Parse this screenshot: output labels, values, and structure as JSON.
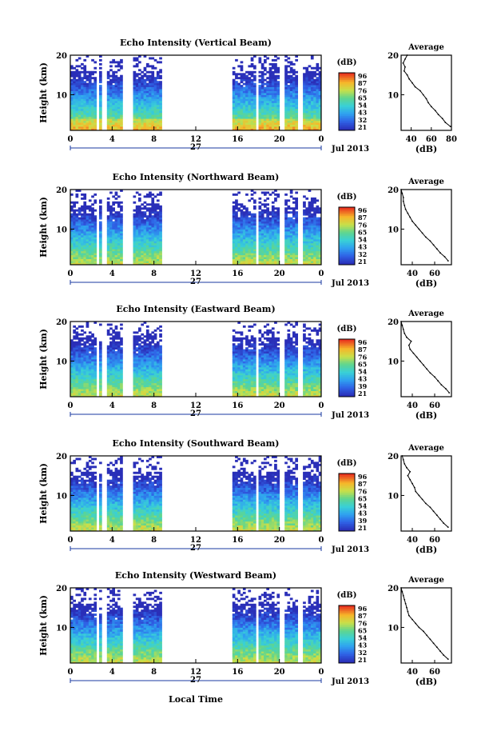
{
  "figure": {
    "xlabel": "Local Time",
    "date_label": "Jul 2013",
    "day_label": "27",
    "colorbar_unit": "(dB)"
  },
  "chart_data": [
    {
      "type": "heatmap",
      "title": "Echo Intensity (Vertical Beam)",
      "xlabel": "",
      "ylabel": "Height (km)",
      "xlim": [
        0,
        24
      ],
      "ylim": [
        1,
        20
      ],
      "xticks": [
        "0",
        "4",
        "8",
        "12",
        "16",
        "20",
        "0"
      ],
      "yticks": [
        "20",
        "10"
      ],
      "colorbar_ticks": [
        "96",
        "87",
        "76",
        "65",
        "54",
        "43",
        "32",
        "21"
      ],
      "data_gaps_hours": [
        [
          2.4,
          2.7
        ],
        [
          3.0,
          3.5
        ],
        [
          5.0,
          6.1
        ],
        [
          8.7,
          15.5
        ],
        [
          17.7,
          18.0
        ],
        [
          20.0,
          20.5
        ],
        [
          21.8,
          22.3
        ]
      ],
      "noise_top_hours": [
        [
          0,
          8.7
        ],
        [
          15.5,
          24
        ]
      ],
      "profile": {
        "title": "Average",
        "xlabel": "(dB)",
        "xticks": [
          "40",
          "60",
          "80"
        ],
        "xlim": [
          30,
          80
        ],
        "heights": [
          2,
          3,
          4,
          5,
          6,
          7,
          8,
          9,
          10,
          11,
          12,
          13,
          14,
          15,
          16,
          17,
          18,
          19,
          20
        ],
        "values": [
          79,
          74,
          71,
          67,
          64,
          60,
          57,
          55,
          52,
          49,
          44,
          41,
          38,
          36,
          33,
          34,
          32,
          34,
          36
        ]
      }
    },
    {
      "type": "heatmap",
      "title": "Echo Intensity (Northward Beam)",
      "xlabel": "",
      "ylabel": "Height (km)",
      "xlim": [
        0,
        24
      ],
      "ylim": [
        1,
        20
      ],
      "xticks": [
        "0",
        "4",
        "8",
        "12",
        "16",
        "20",
        "0"
      ],
      "yticks": [
        "20",
        "10"
      ],
      "colorbar_ticks": [
        "96",
        "87",
        "76",
        "65",
        "54",
        "43",
        "32",
        "21"
      ],
      "data_gaps_hours": [
        [
          2.4,
          2.7
        ],
        [
          3.0,
          3.5
        ],
        [
          5.0,
          6.1
        ],
        [
          8.7,
          15.5
        ],
        [
          17.7,
          18.0
        ],
        [
          20.0,
          20.5
        ],
        [
          21.8,
          22.3
        ]
      ],
      "profile": {
        "title": "Average",
        "xlabel": "(dB)",
        "xticks": [
          "40",
          "60"
        ],
        "xlim": [
          30,
          75
        ],
        "heights": [
          2,
          3,
          4,
          5,
          6,
          7,
          8,
          9,
          10,
          11,
          12,
          13,
          14,
          15,
          16,
          17,
          18,
          19,
          20
        ],
        "values": [
          72,
          69,
          65,
          62,
          59,
          56,
          52,
          49,
          46,
          43,
          40,
          38,
          36,
          34,
          33,
          32,
          32,
          31,
          30
        ]
      }
    },
    {
      "type": "heatmap",
      "title": "Echo Intensity (Eastward Beam)",
      "xlabel": "",
      "ylabel": "Height (km)",
      "xlim": [
        0,
        24
      ],
      "ylim": [
        1,
        20
      ],
      "xticks": [
        "0",
        "4",
        "8",
        "12",
        "16",
        "20",
        "0"
      ],
      "yticks": [
        "20",
        "10"
      ],
      "colorbar_ticks": [
        "96",
        "87",
        "76",
        "65",
        "54",
        "43",
        "39",
        "21"
      ],
      "data_gaps_hours": [
        [
          2.4,
          2.7
        ],
        [
          3.0,
          3.5
        ],
        [
          5.0,
          6.1
        ],
        [
          8.7,
          15.5
        ],
        [
          17.7,
          18.0
        ],
        [
          20.0,
          20.5
        ],
        [
          21.8,
          22.3
        ]
      ],
      "profile": {
        "title": "Average",
        "xlabel": "(dB)",
        "xticks": [
          "40",
          "60"
        ],
        "xlim": [
          30,
          75
        ],
        "heights": [
          2,
          3,
          4,
          5,
          6,
          7,
          8,
          9,
          10,
          11,
          12,
          13,
          14,
          15,
          16,
          17,
          18,
          19,
          20
        ],
        "values": [
          73,
          70,
          66,
          63,
          60,
          56,
          53,
          50,
          47,
          44,
          41,
          38,
          37,
          39,
          35,
          33,
          32,
          31,
          30
        ]
      }
    },
    {
      "type": "heatmap",
      "title": "Echo Intensity (Southward Beam)",
      "xlabel": "",
      "ylabel": "Height (km)",
      "xlim": [
        0,
        24
      ],
      "ylim": [
        1,
        20
      ],
      "xticks": [
        "0",
        "4",
        "8",
        "12",
        "16",
        "20",
        "0"
      ],
      "yticks": [
        "20",
        "10"
      ],
      "colorbar_ticks": [
        "96",
        "87",
        "76",
        "65",
        "54",
        "43",
        "39",
        "21"
      ],
      "data_gaps_hours": [
        [
          2.4,
          2.7
        ],
        [
          3.0,
          3.5
        ],
        [
          5.0,
          6.1
        ],
        [
          8.7,
          15.5
        ],
        [
          17.7,
          18.0
        ],
        [
          20.0,
          20.5
        ],
        [
          21.8,
          22.3
        ]
      ],
      "profile": {
        "title": "Average",
        "xlabel": "(dB)",
        "xticks": [
          "40",
          "60"
        ],
        "xlim": [
          30,
          75
        ],
        "heights": [
          2,
          3,
          4,
          5,
          6,
          7,
          8,
          9,
          10,
          11,
          12,
          13,
          14,
          15,
          16,
          17,
          18,
          19,
          20
        ],
        "values": [
          72,
          68,
          65,
          62,
          59,
          56,
          52,
          49,
          46,
          43,
          42,
          40,
          38,
          36,
          38,
          35,
          33,
          32,
          31
        ]
      }
    },
    {
      "type": "heatmap",
      "title": "Echo Intensity (Westward Beam)",
      "xlabel": "Local Time",
      "ylabel": "Height (km)",
      "xlim": [
        0,
        24
      ],
      "ylim": [
        1,
        20
      ],
      "xticks": [
        "0",
        "4",
        "8",
        "12",
        "16",
        "20",
        "0"
      ],
      "yticks": [
        "20",
        "10"
      ],
      "colorbar_ticks": [
        "96",
        "87",
        "76",
        "65",
        "54",
        "43",
        "32",
        "21"
      ],
      "data_gaps_hours": [
        [
          2.4,
          2.7
        ],
        [
          3.0,
          3.5
        ],
        [
          5.0,
          6.1
        ],
        [
          8.7,
          15.5
        ],
        [
          17.7,
          18.0
        ],
        [
          20.0,
          20.5
        ],
        [
          21.8,
          22.3
        ]
      ],
      "profile": {
        "title": "Average",
        "xlabel": "(dB)",
        "xticks": [
          "40",
          "60"
        ],
        "xlim": [
          30,
          75
        ],
        "heights": [
          2,
          3,
          4,
          5,
          6,
          7,
          8,
          9,
          10,
          11,
          12,
          13,
          14,
          15,
          16,
          17,
          18,
          19,
          20
        ],
        "values": [
          72,
          68,
          65,
          62,
          59,
          56,
          53,
          50,
          46,
          43,
          40,
          37,
          36,
          35,
          34,
          33,
          32,
          31,
          30
        ]
      }
    }
  ]
}
